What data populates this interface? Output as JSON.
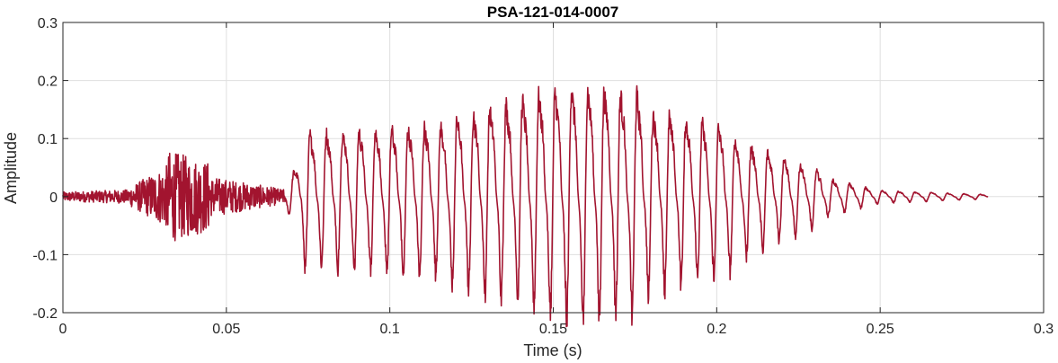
{
  "chart_data": {
    "type": "line",
    "title": "PSA-121-014-0007",
    "xlabel": "Time (s)",
    "ylabel": "Amplitude",
    "xlim": [
      0,
      0.3
    ],
    "ylim": [
      -0.2,
      0.3
    ],
    "xticks": [
      0,
      0.05,
      0.1,
      0.15,
      0.2,
      0.25,
      0.3
    ],
    "xtick_labels": [
      "0",
      "0.05",
      "0.1",
      "0.15",
      "0.2",
      "0.25",
      "0.3"
    ],
    "yticks": [
      -0.2,
      -0.1,
      0,
      0.1,
      0.2,
      0.3
    ],
    "ytick_labels": [
      "-0.2",
      "-0.1",
      "0",
      "0.1",
      "0.2",
      "0.3"
    ],
    "grid": true,
    "line_color": "#a2142f",
    "series": [
      {
        "x_start": 0,
        "x_end": 0.283,
        "segments": [
          {
            "t0": 0.0,
            "t1": 0.02,
            "kind": "noise",
            "amp_start": 0.008,
            "amp_end": 0.012
          },
          {
            "t0": 0.02,
            "t1": 0.032,
            "kind": "noise",
            "amp_start": 0.015,
            "amp_end": 0.055
          },
          {
            "t0": 0.032,
            "t1": 0.045,
            "kind": "noise",
            "amp_start": 0.08,
            "amp_end": 0.06
          },
          {
            "t0": 0.045,
            "t1": 0.068,
            "kind": "noise",
            "amp_start": 0.035,
            "amp_end": 0.012
          },
          {
            "t0": 0.068,
            "t1": 0.073,
            "kind": "osc",
            "amp_start": 0.02,
            "amp_end": 0.08
          },
          {
            "t0": 0.073,
            "t1": 0.118,
            "kind": "osc",
            "amp_start": 0.13,
            "amp_end": 0.15
          },
          {
            "t0": 0.118,
            "t1": 0.155,
            "kind": "osc",
            "amp_start": 0.16,
            "amp_end": 0.23
          },
          {
            "t0": 0.155,
            "t1": 0.178,
            "kind": "osc",
            "amp_start": 0.23,
            "amp_end": 0.21
          },
          {
            "t0": 0.178,
            "t1": 0.205,
            "kind": "osc",
            "amp_start": 0.18,
            "amp_end": 0.14
          },
          {
            "t0": 0.205,
            "t1": 0.232,
            "kind": "osc",
            "amp_start": 0.12,
            "amp_end": 0.05
          },
          {
            "t0": 0.232,
            "t1": 0.25,
            "kind": "osc",
            "amp_start": 0.04,
            "amp_end": 0.012
          },
          {
            "t0": 0.25,
            "t1": 0.283,
            "kind": "osc",
            "amp_start": 0.012,
            "amp_end": 0.004
          }
        ]
      }
    ]
  }
}
